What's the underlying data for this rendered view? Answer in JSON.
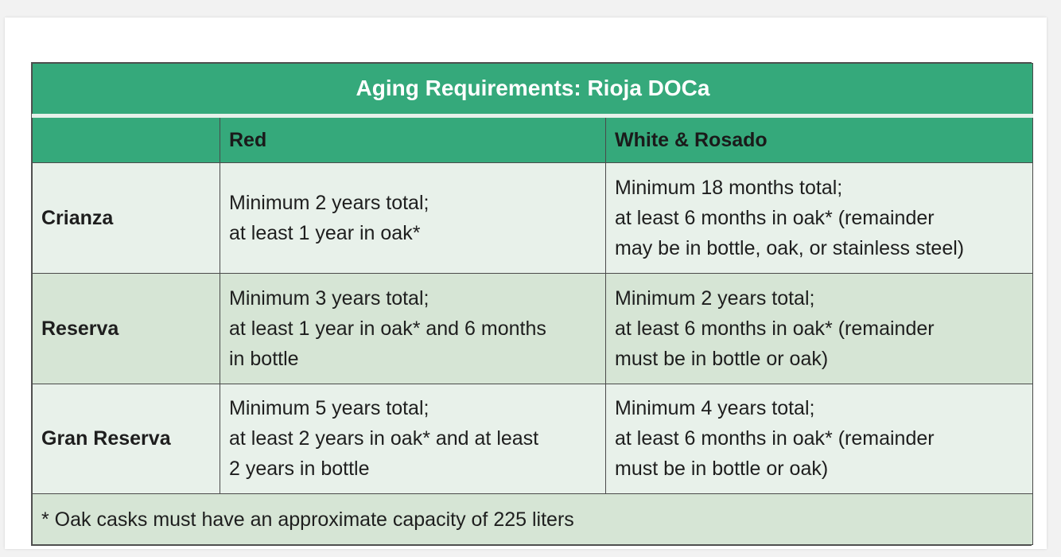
{
  "table": {
    "title": "Aging Requirements: Rioja DOCa",
    "columns": [
      "",
      "Red",
      "White & Rosado"
    ],
    "rows": [
      {
        "label": "Crianza",
        "red": [
          "Minimum 2 years total;",
          "at least 1 year in oak*"
        ],
        "white": [
          "Minimum 18 months total;",
          "at least 6 months in oak* (remainder",
          "may be in bottle, oak, or stainless steel)"
        ]
      },
      {
        "label": "Reserva",
        "red": [
          "Minimum 3 years total;",
          "at least 1 year in oak* and 6 months",
          "in bottle"
        ],
        "white": [
          "Minimum 2 years total;",
          "at least 6 months in oak* (remainder",
          "must be in bottle or oak)"
        ]
      },
      {
        "label": "Gran Reserva",
        "red": [
          "Minimum 5 years total;",
          "at least 2 years in oak* and at least",
          "2 years in bottle"
        ],
        "white": [
          "Minimum 4 years total;",
          "at least 6 months in oak* (remainder",
          "must be in bottle or oak)"
        ]
      }
    ],
    "footnote": "* Oak casks must have an approximate capacity of 225 liters"
  },
  "colors": {
    "header_green": "#35a97b",
    "row_light": "#e8f1ea",
    "row_dark": "#d6e5d5",
    "border": "#4a4a4a"
  }
}
